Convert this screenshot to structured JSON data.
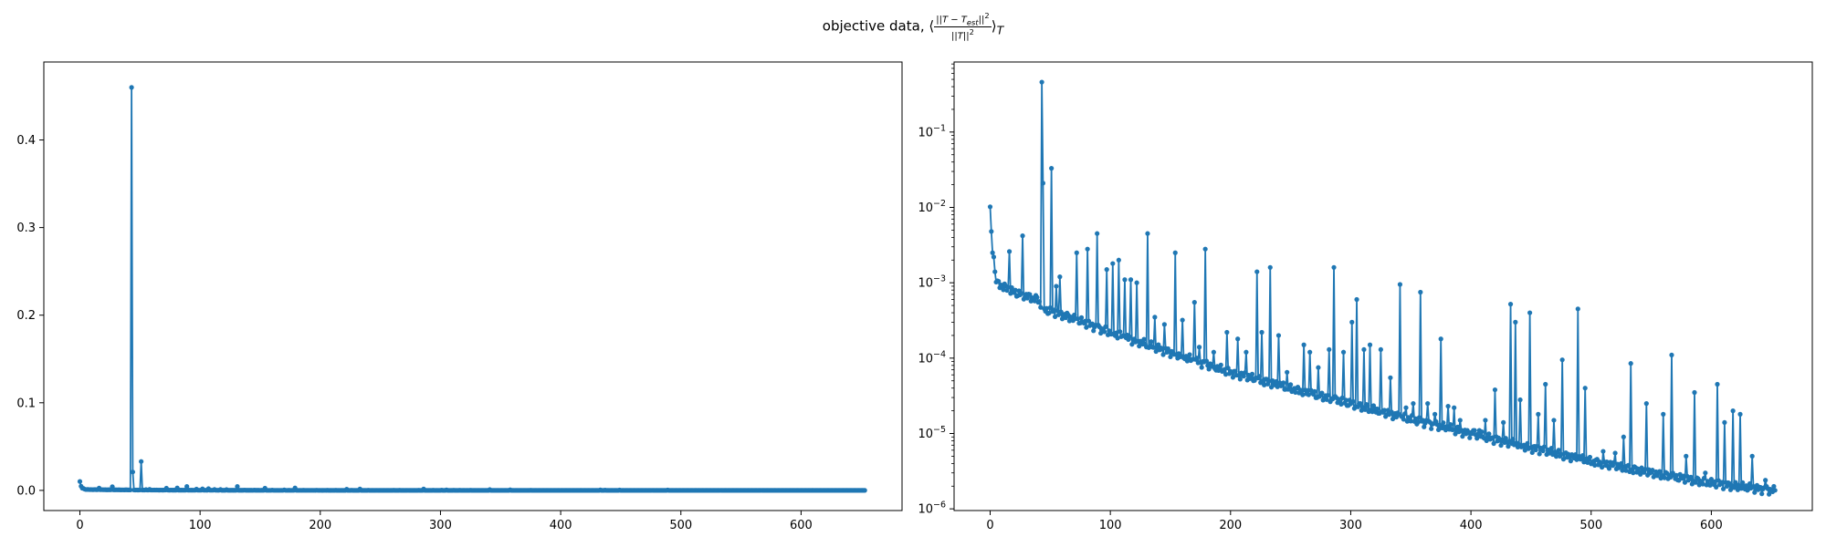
{
  "figure": {
    "title_prefix": "objective data, ",
    "title_left_angle": "⟨",
    "title_numerator": "||T − T",
    "title_numerator_sub": "est",
    "title_numerator_tail": "||",
    "title_numerator_sup": "2",
    "title_denominator": "||T||",
    "title_denominator_sup": "2",
    "title_right_angle": "⟩",
    "title_subscript": "T"
  },
  "chart_data": [
    {
      "type": "line",
      "marker": "dot",
      "color": "#1f77b4",
      "scale": "linear",
      "xlim": [
        -30,
        684
      ],
      "ylim": [
        -0.023,
        0.489
      ],
      "xticks": [
        0,
        100,
        200,
        300,
        400,
        500,
        600
      ],
      "yticks": [
        0.0,
        0.1,
        0.2,
        0.3,
        0.4
      ],
      "ytick_labels": [
        "0.0",
        "0.1",
        "0.2",
        "0.3",
        "0.4"
      ],
      "xlabel": "",
      "ylabel": "",
      "grid": false,
      "n_points": 654,
      "series_note": "same series as right panel"
    },
    {
      "type": "line",
      "marker": "dot",
      "color": "#1f77b4",
      "scale": "log",
      "xlim": [
        -30,
        684
      ],
      "ylim": [
        9.5e-07,
        0.85
      ],
      "xticks": [
        0,
        100,
        200,
        300,
        400,
        500,
        600
      ],
      "yticks": [
        1e-06,
        1e-05,
        0.0001,
        0.001,
        0.01,
        0.1
      ],
      "ytick_base": "10",
      "ytick_exponents": [
        "−6",
        "−5",
        "−4",
        "−3",
        "−2",
        "−1"
      ],
      "xlabel": "",
      "ylabel": "",
      "grid": false,
      "n_points": 654,
      "initial": [
        [
          0,
          0.0102
        ],
        [
          1,
          0.0048
        ],
        [
          2,
          0.0025
        ],
        [
          3,
          0.0022
        ],
        [
          4,
          0.0014
        ],
        [
          5,
          0.00102
        ]
      ],
      "trend": [
        [
          6,
          0.00098
        ],
        [
          20,
          0.00075
        ],
        [
          40,
          0.0006
        ],
        [
          43,
          0.00045
        ],
        [
          60,
          0.00038
        ],
        [
          100,
          0.00022
        ],
        [
          150,
          0.00012
        ],
        [
          200,
          6.5e-05
        ],
        [
          250,
          4e-05
        ],
        [
          300,
          2.5e-05
        ],
        [
          350,
          1.55e-05
        ],
        [
          400,
          1e-05
        ],
        [
          450,
          6.5e-06
        ],
        [
          500,
          4.3e-06
        ],
        [
          550,
          3e-06
        ],
        [
          600,
          2.2e-06
        ],
        [
          653,
          1.75e-06
        ]
      ],
      "spikes": [
        [
          16,
          0.0026
        ],
        [
          27,
          0.0042
        ],
        [
          43,
          0.46
        ],
        [
          44,
          0.021
        ],
        [
          51,
          0.033
        ],
        [
          55,
          0.0009
        ],
        [
          58,
          0.0012
        ],
        [
          72,
          0.0025
        ],
        [
          81,
          0.0028
        ],
        [
          89,
          0.0045
        ],
        [
          97,
          0.0015
        ],
        [
          102,
          0.0018
        ],
        [
          107,
          0.002
        ],
        [
          112,
          0.0011
        ],
        [
          117,
          0.0011
        ],
        [
          122,
          0.001
        ],
        [
          131,
          0.0045
        ],
        [
          137,
          0.00035
        ],
        [
          145,
          0.00028
        ],
        [
          154,
          0.0025
        ],
        [
          160,
          0.00032
        ],
        [
          170,
          0.00055
        ],
        [
          174,
          0.00014
        ],
        [
          179,
          0.0028
        ],
        [
          186,
          0.00012
        ],
        [
          197,
          0.00022
        ],
        [
          206,
          0.00018
        ],
        [
          213,
          0.00012
        ],
        [
          222,
          0.0014
        ],
        [
          226,
          0.00022
        ],
        [
          233,
          0.0016
        ],
        [
          240,
          0.0002
        ],
        [
          247,
          6.5e-05
        ],
        [
          255,
          4e-05
        ],
        [
          261,
          0.00015
        ],
        [
          266,
          0.00012
        ],
        [
          273,
          7.5e-05
        ],
        [
          282,
          0.00013
        ],
        [
          286,
          0.0016
        ],
        [
          294,
          0.00012
        ],
        [
          301,
          0.0003
        ],
        [
          305,
          0.0006
        ],
        [
          311,
          0.00013
        ],
        [
          316,
          0.00015
        ],
        [
          325,
          0.00013
        ],
        [
          333,
          5.5e-05
        ],
        [
          341,
          0.00095
        ],
        [
          346,
          2.2e-05
        ],
        [
          352,
          2.5e-05
        ],
        [
          358,
          0.00075
        ],
        [
          364,
          2.5e-05
        ],
        [
          370,
          1.8e-05
        ],
        [
          375,
          0.00018
        ],
        [
          381,
          2.3e-05
        ],
        [
          386,
          2.2e-05
        ],
        [
          391,
          1.5e-05
        ],
        [
          397,
          1.1e-05
        ],
        [
          402,
          1.1e-05
        ],
        [
          407,
          1.1e-05
        ],
        [
          412,
          1.5e-05
        ],
        [
          420,
          3.8e-05
        ],
        [
          427,
          1.4e-05
        ],
        [
          433,
          0.00052
        ],
        [
          437,
          0.0003
        ],
        [
          441,
          2.8e-05
        ],
        [
          449,
          0.0004
        ],
        [
          456,
          1.8e-05
        ],
        [
          462,
          4.5e-05
        ],
        [
          469,
          1.5e-05
        ],
        [
          476,
          9.5e-05
        ],
        [
          489,
          0.00045
        ],
        [
          495,
          4e-05
        ],
        [
          510,
          5.8e-06
        ],
        [
          520,
          5.5e-06
        ],
        [
          527,
          9e-06
        ],
        [
          533,
          8.5e-05
        ],
        [
          546,
          2.5e-05
        ],
        [
          560,
          1.8e-05
        ],
        [
          567,
          0.00011
        ],
        [
          579,
          5e-06
        ],
        [
          586,
          3.5e-05
        ],
        [
          595,
          3e-06
        ],
        [
          605,
          4.5e-05
        ],
        [
          611,
          1.4e-05
        ],
        [
          618,
          2e-05
        ],
        [
          624,
          1.8e-05
        ],
        [
          634,
          5e-06
        ],
        [
          645,
          2.4e-06
        ]
      ]
    }
  ]
}
